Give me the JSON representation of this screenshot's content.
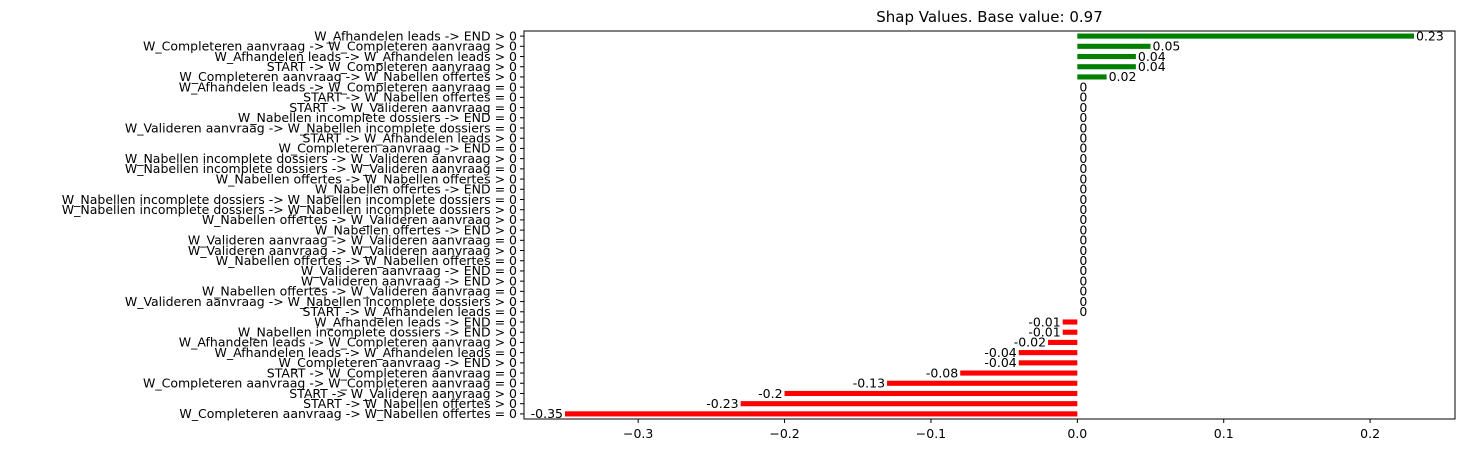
{
  "chart_data": {
    "type": "bar",
    "orientation": "horizontal",
    "title": "Shap Values. Base value: 0.97",
    "xlim": [
      -0.378,
      0.258
    ],
    "xticks": [
      -0.3,
      -0.2,
      -0.1,
      0.0,
      0.1,
      0.2
    ],
    "xtick_labels": [
      "−0.3",
      "−0.2",
      "−0.1",
      "0.0",
      "0.1",
      "0.2"
    ],
    "colors": {
      "positive": "#008000",
      "negative": "#ff0000"
    },
    "categories": [
      "W_Afhandelen leads -> END > 0",
      "W_Completeren aanvraag -> W_Completeren aanvraag > 0",
      "W_Afhandelen leads -> W_Afhandelen leads > 0",
      "START -> W_Completeren aanvraag > 0",
      "W_Completeren aanvraag -> W_Nabellen offertes > 0",
      "W_Afhandelen leads -> W_Completeren aanvraag = 0",
      "START -> W_Nabellen offertes = 0",
      "START -> W_Valideren aanvraag = 0",
      "W_Nabellen incomplete dossiers -> END = 0",
      "W_Valideren aanvraag -> W_Nabellen incomplete dossiers = 0",
      "START -> W_Afhandelen leads > 0",
      "W_Completeren aanvraag -> END = 0",
      "W_Nabellen incomplete dossiers -> W_Valideren aanvraag > 0",
      "W_Nabellen incomplete dossiers -> W_Valideren aanvraag = 0",
      "W_Nabellen offertes -> W_Nabellen offertes > 0",
      "W_Nabellen offertes -> END = 0",
      "W_Nabellen incomplete dossiers -> W_Nabellen incomplete dossiers = 0",
      "W_Nabellen incomplete dossiers -> W_Nabellen incomplete dossiers > 0",
      "W_Nabellen offertes -> W_Valideren aanvraag > 0",
      "W_Nabellen offertes -> END > 0",
      "W_Valideren aanvraag -> W_Valideren aanvraag = 0",
      "W_Valideren aanvraag -> W_Valideren aanvraag > 0",
      "W_Nabellen offertes -> W_Nabellen offertes = 0",
      "W_Valideren aanvraag -> END = 0",
      "W_Valideren aanvraag -> END > 0",
      "W_Nabellen offertes -> W_Valideren aanvraag = 0",
      "W_Valideren aanvraag -> W_Nabellen incomplete dossiers > 0",
      "START -> W_Afhandelen leads = 0",
      "W_Afhandelen leads -> END = 0",
      "W_Nabellen incomplete dossiers -> END > 0",
      "W_Afhandelen leads -> W_Completeren aanvraag > 0",
      "W_Afhandelen leads -> W_Afhandelen leads = 0",
      "W_Completeren aanvraag -> END > 0",
      "START -> W_Completeren aanvraag = 0",
      "W_Completeren aanvraag -> W_Completeren aanvraag = 0",
      "START -> W_Valideren aanvraag > 0",
      "START -> W_Nabellen offertes > 0",
      "W_Completeren aanvraag -> W_Nabellen offertes = 0"
    ],
    "values": [
      0.23,
      0.05,
      0.04,
      0.04,
      0.02,
      0,
      0,
      0,
      0,
      0,
      0,
      0,
      0,
      0,
      0,
      0,
      0,
      0,
      0,
      0,
      0,
      0,
      0,
      0,
      0,
      0,
      0,
      0,
      -0.01,
      -0.01,
      -0.02,
      -0.04,
      -0.04,
      -0.08,
      -0.13,
      -0.2,
      -0.23,
      -0.35
    ],
    "value_labels": [
      "0.23",
      "0.05",
      "0.04",
      "0.04",
      "0.02",
      "0",
      "0",
      "0",
      "0",
      "0",
      "0",
      "0",
      "0",
      "0",
      "0",
      "0",
      "0",
      "0",
      "0",
      "0",
      "0",
      "0",
      "0",
      "0",
      "0",
      "0",
      "0",
      "0",
      "-0.01",
      "-0.01",
      "-0.02",
      "-0.04",
      "-0.04",
      "-0.08",
      "-0.13",
      "-0.2",
      "-0.23",
      "-0.35"
    ]
  }
}
